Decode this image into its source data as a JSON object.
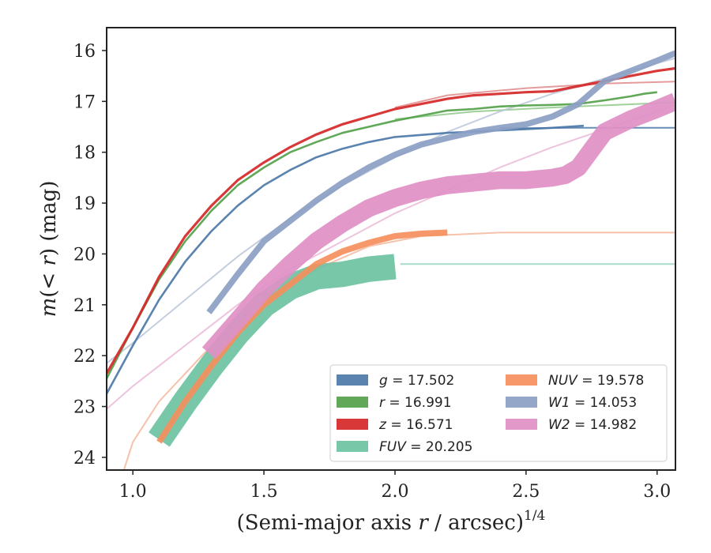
{
  "chart_data": {
    "type": "line",
    "xlabel": "(Semi-major axis r / arcsec)^1/4",
    "ylabel": "m(<r) (mag)",
    "xlim": [
      0.9,
      3.07
    ],
    "ylim": [
      24.25,
      15.55
    ],
    "y_inverted": true,
    "x_ticks": [
      "1.0",
      "1.5",
      "2.0",
      "2.5",
      "3.0"
    ],
    "y_ticks": [
      "16",
      "17",
      "18",
      "19",
      "20",
      "21",
      "22",
      "23",
      "24"
    ],
    "grid": false,
    "legend_position": "lower-right",
    "series": [
      {
        "name": "g",
        "legend_label": "g = 17.502",
        "color": "#4c78a8",
        "data_width": 0.04,
        "data": [
          [
            0.9,
            22.75
          ],
          [
            1.0,
            21.8
          ],
          [
            1.1,
            20.9
          ],
          [
            1.2,
            20.15
          ],
          [
            1.3,
            19.55
          ],
          [
            1.4,
            19.05
          ],
          [
            1.5,
            18.65
          ],
          [
            1.6,
            18.35
          ],
          [
            1.7,
            18.1
          ],
          [
            1.8,
            17.93
          ],
          [
            1.9,
            17.8
          ],
          [
            2.0,
            17.7
          ],
          [
            2.2,
            17.62
          ],
          [
            2.4,
            17.57
          ],
          [
            2.6,
            17.52
          ],
          [
            2.72,
            17.48
          ]
        ],
        "model_color": "#4c78a8",
        "model": [
          [
            2.4,
            17.53
          ],
          [
            2.7,
            17.52
          ],
          [
            3.07,
            17.52
          ]
        ]
      },
      {
        "name": "r",
        "legend_label": "r = 16.991",
        "color": "#54a24b",
        "data_width": 0.04,
        "data": [
          [
            0.9,
            22.45
          ],
          [
            1.0,
            21.45
          ],
          [
            1.1,
            20.5
          ],
          [
            1.2,
            19.75
          ],
          [
            1.3,
            19.15
          ],
          [
            1.4,
            18.65
          ],
          [
            1.5,
            18.3
          ],
          [
            1.6,
            18.0
          ],
          [
            1.7,
            17.8
          ],
          [
            1.8,
            17.62
          ],
          [
            1.9,
            17.5
          ],
          [
            2.0,
            17.38
          ],
          [
            2.1,
            17.28
          ],
          [
            2.2,
            17.18
          ],
          [
            2.3,
            17.15
          ],
          [
            2.4,
            17.1
          ],
          [
            2.5,
            17.08
          ],
          [
            2.6,
            17.07
          ],
          [
            2.7,
            17.05
          ],
          [
            2.8,
            16.98
          ],
          [
            2.9,
            16.9
          ],
          [
            2.95,
            16.85
          ],
          [
            3.0,
            16.82
          ]
        ],
        "model_color": "#8fc98a",
        "model": [
          [
            2.0,
            17.35
          ],
          [
            2.3,
            17.2
          ],
          [
            2.6,
            17.12
          ],
          [
            3.07,
            17.02
          ]
        ]
      },
      {
        "name": "z",
        "legend_label": "z = 16.571",
        "color": "#d62728",
        "data_width": 0.05,
        "data": [
          [
            0.9,
            22.35
          ],
          [
            1.0,
            21.45
          ],
          [
            1.1,
            20.45
          ],
          [
            1.2,
            19.65
          ],
          [
            1.3,
            19.05
          ],
          [
            1.4,
            18.55
          ],
          [
            1.5,
            18.2
          ],
          [
            1.6,
            17.9
          ],
          [
            1.7,
            17.65
          ],
          [
            1.8,
            17.45
          ],
          [
            1.9,
            17.3
          ],
          [
            2.0,
            17.15
          ],
          [
            2.1,
            17.05
          ],
          [
            2.2,
            16.95
          ],
          [
            2.3,
            16.88
          ],
          [
            2.4,
            16.85
          ],
          [
            2.5,
            16.82
          ],
          [
            2.6,
            16.8
          ],
          [
            2.7,
            16.7
          ],
          [
            2.8,
            16.6
          ],
          [
            2.9,
            16.5
          ],
          [
            3.0,
            16.4
          ],
          [
            3.07,
            16.35
          ]
        ],
        "model_color": "#e08a8b",
        "model": [
          [
            2.0,
            17.12
          ],
          [
            2.2,
            16.88
          ],
          [
            2.5,
            16.74
          ],
          [
            2.8,
            16.65
          ],
          [
            3.07,
            16.61
          ]
        ]
      },
      {
        "name": "FUV",
        "legend_label": "FUV = 20.205",
        "color": "#6cc2a2",
        "data_width": 0.5,
        "data": [
          [
            1.1,
            23.65
          ],
          [
            1.2,
            22.9
          ],
          [
            1.3,
            22.2
          ],
          [
            1.4,
            21.55
          ],
          [
            1.5,
            21.0
          ],
          [
            1.6,
            20.65
          ],
          [
            1.7,
            20.45
          ],
          [
            1.8,
            20.4
          ],
          [
            1.9,
            20.3
          ],
          [
            2.0,
            20.25
          ]
        ],
        "model_color": "#9ad5bf",
        "model": [
          [
            2.02,
            20.2
          ],
          [
            2.5,
            20.2
          ],
          [
            3.07,
            20.2
          ]
        ]
      },
      {
        "name": "NUV",
        "legend_label": "NUV = 19.578",
        "color": "#f58f5d",
        "data_width": 0.12,
        "data": [
          [
            1.1,
            23.7
          ],
          [
            1.2,
            22.9
          ],
          [
            1.3,
            22.2
          ],
          [
            1.4,
            21.55
          ],
          [
            1.5,
            21.0
          ],
          [
            1.6,
            20.6
          ],
          [
            1.7,
            20.2
          ],
          [
            1.8,
            19.95
          ],
          [
            1.9,
            19.78
          ],
          [
            2.0,
            19.65
          ],
          [
            2.1,
            19.6
          ],
          [
            2.2,
            19.58
          ]
        ],
        "model_color": "#f5b79a",
        "model": [
          [
            0.95,
            24.5
          ],
          [
            1.0,
            23.7
          ],
          [
            1.1,
            22.9
          ],
          [
            1.3,
            21.8
          ],
          [
            1.5,
            20.9
          ],
          [
            1.7,
            20.3
          ],
          [
            1.9,
            19.85
          ],
          [
            2.1,
            19.65
          ],
          [
            2.4,
            19.58
          ],
          [
            3.07,
            19.58
          ]
        ]
      },
      {
        "name": "W1",
        "legend_label": "W1 = 14.053",
        "color": "#8c9fc4",
        "data_width": 0.12,
        "data": [
          [
            1.29,
            21.15
          ],
          [
            1.4,
            20.4
          ],
          [
            1.5,
            19.75
          ],
          [
            1.6,
            19.35
          ],
          [
            1.7,
            18.95
          ],
          [
            1.8,
            18.6
          ],
          [
            1.9,
            18.3
          ],
          [
            2.0,
            18.05
          ],
          [
            2.1,
            17.85
          ],
          [
            2.2,
            17.72
          ],
          [
            2.3,
            17.6
          ],
          [
            2.4,
            17.52
          ],
          [
            2.5,
            17.45
          ],
          [
            2.6,
            17.3
          ],
          [
            2.7,
            17.05
          ],
          [
            2.8,
            16.6
          ],
          [
            2.9,
            16.4
          ],
          [
            3.0,
            16.2
          ],
          [
            3.07,
            16.05
          ]
        ],
        "model_color": "#bac5d9",
        "model": [
          [
            0.9,
            22.15
          ],
          [
            1.0,
            21.75
          ],
          [
            1.2,
            20.9
          ],
          [
            1.4,
            20.05
          ],
          [
            1.6,
            19.3
          ],
          [
            1.8,
            18.65
          ],
          [
            2.0,
            18.1
          ],
          [
            2.2,
            17.6
          ],
          [
            2.4,
            17.2
          ],
          [
            2.6,
            16.85
          ],
          [
            2.8,
            16.55
          ],
          [
            3.0,
            16.25
          ],
          [
            3.07,
            16.15
          ]
        ]
      },
      {
        "name": "W2",
        "legend_label": "W2 = 14.982",
        "color": "#e090c5",
        "data_width": 0.35,
        "data": [
          [
            1.29,
            21.95
          ],
          [
            1.4,
            21.3
          ],
          [
            1.5,
            20.7
          ],
          [
            1.6,
            20.2
          ],
          [
            1.7,
            19.75
          ],
          [
            1.8,
            19.4
          ],
          [
            1.9,
            19.1
          ],
          [
            2.0,
            18.9
          ],
          [
            2.1,
            18.75
          ],
          [
            2.2,
            18.65
          ],
          [
            2.3,
            18.6
          ],
          [
            2.4,
            18.55
          ],
          [
            2.5,
            18.55
          ],
          [
            2.6,
            18.5
          ],
          [
            2.65,
            18.45
          ],
          [
            2.7,
            18.3
          ],
          [
            2.75,
            17.95
          ],
          [
            2.8,
            17.6
          ],
          [
            2.9,
            17.35
          ],
          [
            3.0,
            17.15
          ],
          [
            3.07,
            17.0
          ]
        ],
        "model_color": "#ebb8d8",
        "model": [
          [
            0.9,
            23.05
          ],
          [
            1.0,
            22.6
          ],
          [
            1.2,
            21.8
          ],
          [
            1.4,
            21.0
          ],
          [
            1.6,
            20.3
          ],
          [
            1.8,
            19.75
          ],
          [
            2.0,
            19.2
          ],
          [
            2.2,
            18.75
          ],
          [
            2.4,
            18.3
          ],
          [
            2.6,
            17.9
          ],
          [
            2.8,
            17.55
          ],
          [
            3.0,
            17.2
          ],
          [
            3.07,
            17.05
          ]
        ]
      }
    ]
  }
}
